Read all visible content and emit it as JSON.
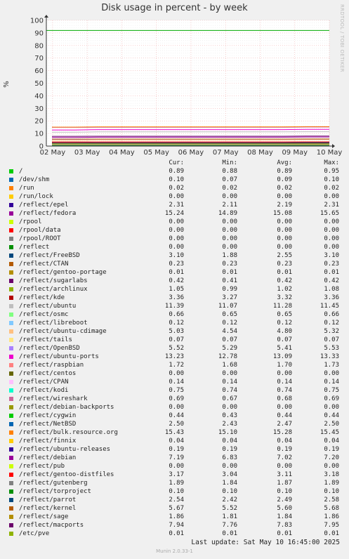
{
  "title": "Disk usage in percent - by week",
  "side_label": "RRDTOOL / TOBI OETIKER",
  "last_update": "Last update:  Sat May 10 16:45:00 2025",
  "footer": "Munin 2.0.33-1",
  "legend_header": {
    "cur": "Cur:",
    "min": "Min:",
    "avg": "Avg:",
    "max": "Max:"
  },
  "chart_data": {
    "type": "line",
    "title": "Disk usage in percent - by week",
    "ylabel": "%",
    "ylim": [
      0,
      100
    ],
    "y_ticks": [
      "0",
      "10",
      "20",
      "30",
      "40",
      "50",
      "60",
      "70",
      "80",
      "90",
      "100"
    ],
    "x_ticks": [
      "02 May",
      "03 May",
      "04 May",
      "05 May",
      "06 May",
      "07 May",
      "08 May",
      "09 May",
      "10 May"
    ],
    "grid": true,
    "series": [
      {
        "name": "/",
        "color": "#00cc00",
        "cur": "0.89",
        "min": "0.88",
        "avg": "0.89",
        "max": "0.95"
      },
      {
        "name": "/dev/shm",
        "color": "#0066b3",
        "cur": "0.10",
        "min": "0.07",
        "avg": "0.09",
        "max": "0.10"
      },
      {
        "name": "/run",
        "color": "#ff8000",
        "cur": "0.02",
        "min": "0.02",
        "avg": "0.02",
        "max": "0.02"
      },
      {
        "name": "/run/lock",
        "color": "#ffcc00",
        "cur": "0.00",
        "min": "0.00",
        "avg": "0.00",
        "max": "0.00"
      },
      {
        "name": "/reflect/epel",
        "color": "#330099",
        "cur": "2.31",
        "min": "2.11",
        "avg": "2.19",
        "max": "2.31"
      },
      {
        "name": "/reflect/fedora",
        "color": "#990099",
        "cur": "15.24",
        "min": "14.89",
        "avg": "15.08",
        "max": "15.65"
      },
      {
        "name": "/rpool",
        "color": "#ccff00",
        "cur": "0.00",
        "min": "0.00",
        "avg": "0.00",
        "max": "0.00"
      },
      {
        "name": "/rpool/data",
        "color": "#ff0000",
        "cur": "0.00",
        "min": "0.00",
        "avg": "0.00",
        "max": "0.00"
      },
      {
        "name": "/rpool/ROOT",
        "color": "#808080",
        "cur": "0.00",
        "min": "0.00",
        "avg": "0.00",
        "max": "0.00"
      },
      {
        "name": "/reflect",
        "color": "#008f00",
        "cur": "0.00",
        "min": "0.00",
        "avg": "0.00",
        "max": "0.00"
      },
      {
        "name": "/reflect/FreeBSD",
        "color": "#00487d",
        "cur": "3.10",
        "min": "1.88",
        "avg": "2.55",
        "max": "3.10"
      },
      {
        "name": "/reflect/CTAN",
        "color": "#b35a00",
        "cur": "0.23",
        "min": "0.23",
        "avg": "0.23",
        "max": "0.23"
      },
      {
        "name": "/reflect/gentoo-portage",
        "color": "#b38f00",
        "cur": "0.01",
        "min": "0.01",
        "avg": "0.01",
        "max": "0.01"
      },
      {
        "name": "/reflect/sugarlabs",
        "color": "#6b006b",
        "cur": "0.42",
        "min": "0.41",
        "avg": "0.42",
        "max": "0.42"
      },
      {
        "name": "/reflect/archlinux",
        "color": "#8fb300",
        "cur": "1.05",
        "min": "0.99",
        "avg": "1.02",
        "max": "1.08"
      },
      {
        "name": "/reflect/kde",
        "color": "#b30000",
        "cur": "3.36",
        "min": "3.27",
        "avg": "3.32",
        "max": "3.36"
      },
      {
        "name": "/reflect/ubuntu",
        "color": "#bebebe",
        "cur": "11.39",
        "min": "11.07",
        "avg": "11.28",
        "max": "11.45"
      },
      {
        "name": "/reflect/osmc",
        "color": "#80ff80",
        "cur": "0.66",
        "min": "0.65",
        "avg": "0.65",
        "max": "0.66"
      },
      {
        "name": "/reflect/libreboot",
        "color": "#80c9ff",
        "cur": "0.12",
        "min": "0.12",
        "avg": "0.12",
        "max": "0.12"
      },
      {
        "name": "/reflect/ubuntu-cdimage",
        "color": "#ffc080",
        "cur": "5.03",
        "min": "4.54",
        "avg": "4.80",
        "max": "5.32"
      },
      {
        "name": "/reflect/tails",
        "color": "#ffe680",
        "cur": "0.07",
        "min": "0.07",
        "avg": "0.07",
        "max": "0.07"
      },
      {
        "name": "/reflect/OpenBSD",
        "color": "#aa80ff",
        "cur": "5.52",
        "min": "5.29",
        "avg": "5.41",
        "max": "5.53"
      },
      {
        "name": "/reflect/ubuntu-ports",
        "color": "#ee00cc",
        "cur": "13.23",
        "min": "12.78",
        "avg": "13.09",
        "max": "13.33"
      },
      {
        "name": "/reflect/raspbian",
        "color": "#ff8080",
        "cur": "1.72",
        "min": "1.68",
        "avg": "1.70",
        "max": "1.73"
      },
      {
        "name": "/reflect/centos",
        "color": "#666600",
        "cur": "0.00",
        "min": "0.00",
        "avg": "0.00",
        "max": "0.00"
      },
      {
        "name": "/reflect/CPAN",
        "color": "#ffbfff",
        "cur": "0.14",
        "min": "0.14",
        "avg": "0.14",
        "max": "0.14"
      },
      {
        "name": "/reflect/kodi",
        "color": "#00ffcc",
        "cur": "0.75",
        "min": "0.74",
        "avg": "0.74",
        "max": "0.75"
      },
      {
        "name": "/reflect/wireshark",
        "color": "#cc6699",
        "cur": "0.69",
        "min": "0.67",
        "avg": "0.68",
        "max": "0.69"
      },
      {
        "name": "/reflect/debian-backports",
        "color": "#999900",
        "cur": "0.00",
        "min": "0.00",
        "avg": "0.00",
        "max": "0.00"
      },
      {
        "name": "/reflect/cygwin",
        "color": "#00cc00",
        "cur": "0.44",
        "min": "0.43",
        "avg": "0.44",
        "max": "0.44"
      },
      {
        "name": "/reflect/NetBSD",
        "color": "#0066b3",
        "cur": "2.50",
        "min": "2.43",
        "avg": "2.47",
        "max": "2.50"
      },
      {
        "name": "/reflect/bulk.resource.org",
        "color": "#ff8000",
        "cur": "15.43",
        "min": "15.10",
        "avg": "15.28",
        "max": "15.45"
      },
      {
        "name": "/reflect/finnix",
        "color": "#ffcc00",
        "cur": "0.04",
        "min": "0.04",
        "avg": "0.04",
        "max": "0.04"
      },
      {
        "name": "/reflect/ubuntu-releases",
        "color": "#330099",
        "cur": "0.19",
        "min": "0.19",
        "avg": "0.19",
        "max": "0.19"
      },
      {
        "name": "/reflect/debian",
        "color": "#990099",
        "cur": "7.19",
        "min": "6.83",
        "avg": "7.02",
        "max": "7.20"
      },
      {
        "name": "/reflect/pub",
        "color": "#ccff00",
        "cur": "0.00",
        "min": "0.00",
        "avg": "0.00",
        "max": "0.00"
      },
      {
        "name": "/reflect/gentoo-distfiles",
        "color": "#ff0000",
        "cur": "3.17",
        "min": "3.04",
        "avg": "3.11",
        "max": "3.18"
      },
      {
        "name": "/reflect/gutenberg",
        "color": "#808080",
        "cur": "1.89",
        "min": "1.84",
        "avg": "1.87",
        "max": "1.89"
      },
      {
        "name": "/reflect/torproject",
        "color": "#008f00",
        "cur": "0.10",
        "min": "0.10",
        "avg": "0.10",
        "max": "0.10"
      },
      {
        "name": "/reflect/parrot",
        "color": "#00487d",
        "cur": "2.54",
        "min": "2.42",
        "avg": "2.49",
        "max": "2.58"
      },
      {
        "name": "/reflect/kernel",
        "color": "#b35a00",
        "cur": "5.67",
        "min": "5.52",
        "avg": "5.60",
        "max": "5.68"
      },
      {
        "name": "/reflect/sage",
        "color": "#b38f00",
        "cur": "1.86",
        "min": "1.81",
        "avg": "1.84",
        "max": "1.86"
      },
      {
        "name": "/reflect/macports",
        "color": "#6b006b",
        "cur": "7.94",
        "min": "7.76",
        "avg": "7.83",
        "max": "7.95"
      },
      {
        "name": "/etc/pve",
        "color": "#8fb300",
        "cur": "0.01",
        "min": "0.01",
        "avg": "0.01",
        "max": "0.01"
      }
    ],
    "reference_line": {
      "value": 92,
      "color": "#00aa00"
    }
  }
}
